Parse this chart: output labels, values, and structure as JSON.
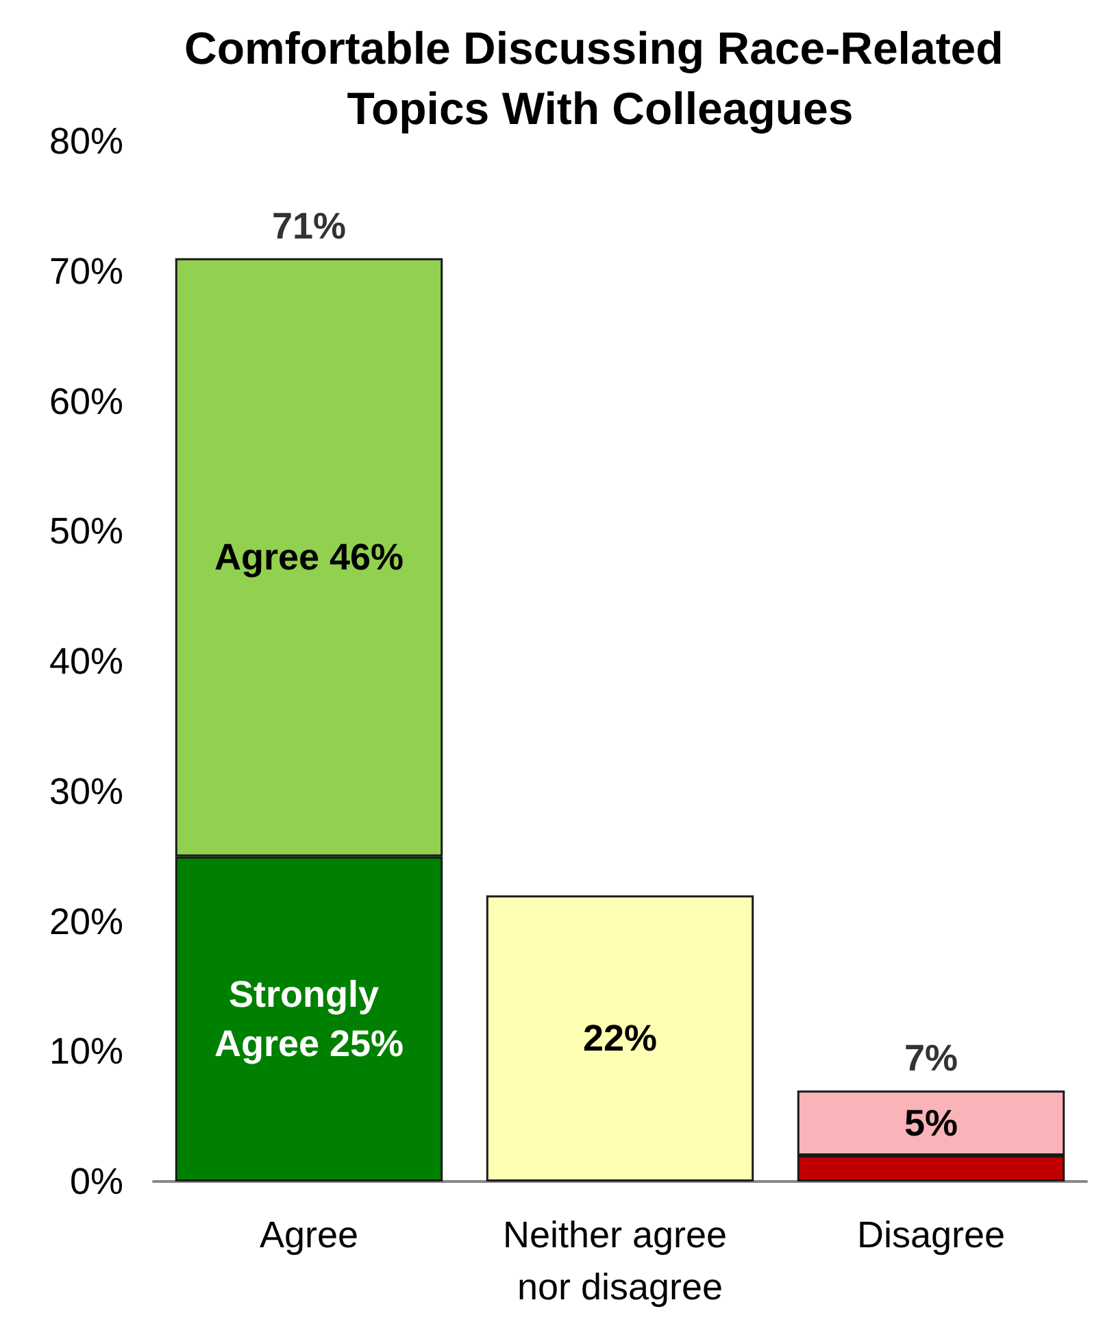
{
  "chart_data": {
    "type": "bar",
    "title": "Comfortable Discussing Race-Related Topics With Colleagues",
    "categories": [
      "Agree",
      "Neither agree nor disagree",
      "Disagree"
    ],
    "stacked": true,
    "series": [
      {
        "colors": [
          "#008000",
          "#ffffb3",
          "#c00000"
        ],
        "values": [
          25,
          22,
          2
        ],
        "value_labels": [
          "Strongly Agree 25%",
          "22%",
          null
        ]
      },
      {
        "colors": [
          "#92d050",
          null,
          "#fab3b8"
        ],
        "values": [
          46,
          null,
          5
        ],
        "value_labels": [
          "Agree 46%",
          null,
          "5%"
        ]
      }
    ],
    "totals": [
      "71%",
      null,
      "7%"
    ],
    "ylim": [
      0,
      80
    ],
    "yticks": [
      {
        "value": 0,
        "label": "0%"
      },
      {
        "value": 10,
        "label": "10%"
      },
      {
        "value": 20,
        "label": "20%"
      },
      {
        "value": 30,
        "label": "30%"
      },
      {
        "value": 40,
        "label": "40%"
      },
      {
        "value": 50,
        "label": "50%"
      },
      {
        "value": 60,
        "label": "60%"
      },
      {
        "value": 70,
        "label": "70%"
      },
      {
        "value": 80,
        "label": "80%"
      }
    ],
    "grid": false
  }
}
